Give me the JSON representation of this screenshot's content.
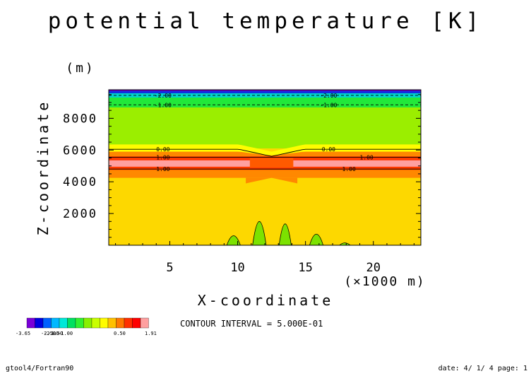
{
  "chart_data": {
    "type": "heatmap",
    "title": "potential temperature [K]",
    "xlabel": "X-coordinate",
    "ylabel": "Z-coordinate",
    "x_unit": "(×1000 m)",
    "y_unit": "(m)",
    "xlim": [
      0.5,
      23.5
    ],
    "ylim": [
      0,
      9800
    ],
    "x_ticks": [
      "5",
      "10",
      "15",
      "20"
    ],
    "x_tick_values": [
      5,
      10,
      15,
      20
    ],
    "y_ticks": [
      "2000",
      "4000",
      "6000",
      "8000"
    ],
    "y_tick_values": [
      2000,
      4000,
      6000,
      8000
    ],
    "grid": false,
    "contour_labels": [
      {
        "text": "-2.00",
        "x": 4.5,
        "y": 9450
      },
      {
        "text": "-2.00",
        "x": 16.7,
        "y": 9450
      },
      {
        "text": "-1.00",
        "x": 4.5,
        "y": 8850
      },
      {
        "text": "-1.00",
        "x": 16.7,
        "y": 8850
      },
      {
        "text": "0.00",
        "x": 4.5,
        "y": 6050
      },
      {
        "text": "0.00",
        "x": 16.7,
        "y": 6050
      },
      {
        "text": "1.00",
        "x": 4.5,
        "y": 5550
      },
      {
        "text": "1.00",
        "x": 19.5,
        "y": 5550
      },
      {
        "text": "1.00",
        "x": 4.5,
        "y": 4800
      },
      {
        "text": "1.00",
        "x": 18.2,
        "y": 4800
      }
    ],
    "bands": [
      {
        "level": "0.00 to 0.50",
        "color": "#fffc00",
        "bottom": 5700,
        "top": 6350,
        "dip": 450
      },
      {
        "level": "0.50 to 1.00",
        "color": "#ff8800",
        "bottom": 4250,
        "top": 5900,
        "dip": 250
      },
      {
        "level": "1.00 to 1.50",
        "color": "#ff3b00",
        "bottom": 4750,
        "top": 5600,
        "dip": 0
      },
      {
        "level": "1.50 to 1.91",
        "color": "#ffa0a0",
        "bottom": 4950,
        "top": 5350,
        "dip": 0
      }
    ]
  },
  "colorbar": {
    "colors": [
      "#7a00d8",
      "#0000e0",
      "#0060ff",
      "#00b8ff",
      "#00e8d8",
      "#00e060",
      "#30f030",
      "#88f000",
      "#c8ff00",
      "#fffc00",
      "#ffc000",
      "#ff7800",
      "#ff3000",
      "#ff0000",
      "#ffa0a0"
    ],
    "labels": [
      "-3.65",
      "-2.50",
      "-2.00",
      "-1.50",
      "-1.00",
      "0.50",
      "1.91"
    ]
  },
  "contour_interval": "CONTOUR INTERVAL = 5.000E-01",
  "footer": {
    "left": "gtool4/Fortran90",
    "right": "date: 4/ 1/ 4 page: 1"
  }
}
